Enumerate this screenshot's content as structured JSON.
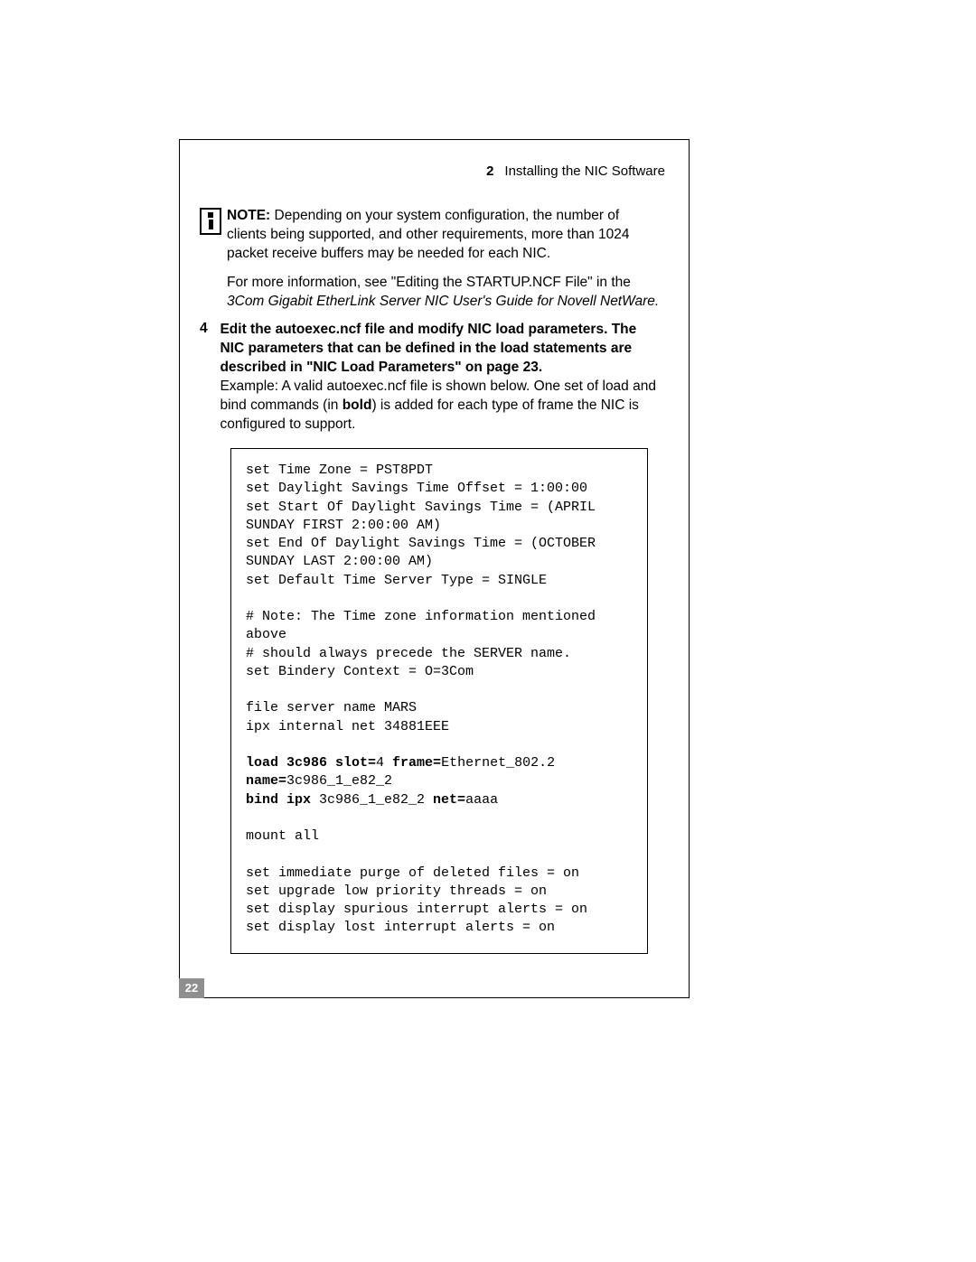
{
  "header": {
    "chapter_num": "2",
    "chapter_title": "Installing the NIC Software"
  },
  "note": {
    "label": "NOTE:",
    "text": " Depending on your system configuration, the number of clients being supported, and other requirements, more than 1024 packet receive buffers may be needed for each NIC."
  },
  "more_info": {
    "lead": "For more information, see \"Editing the STARTUP.NCF File\" in the ",
    "ital": "3Com Gigabit EtherLink Server NIC User's Guide for Novell NetWare."
  },
  "step4": {
    "num": "4",
    "bold_line": "Edit the autoexec.ncf file and modify NIC load parameters. The NIC parameters that can be defined in the load statements are described in \"NIC Load Parameters\" on page 23.",
    "plain_a": "Example: A valid autoexec.ncf file is shown below. One set of load and bind commands (in ",
    "plain_bold": "bold",
    "plain_b": ") is added for each type of frame the NIC is configured to support."
  },
  "code": {
    "l1": "set Time Zone = PST8PDT",
    "l2": "set Daylight Savings Time Offset = 1:00:00",
    "l3": "set Start Of Daylight Savings Time = (APRIL SUNDAY FIRST 2:00:00 AM)",
    "l4": "set End Of Daylight Savings Time = (OCTOBER SUNDAY LAST 2:00:00 AM)",
    "l5": "set Default Time Server Type = SINGLE",
    "l6": "",
    "l7": "# Note: The Time zone information mentioned above",
    "l8": "# should always precede the SERVER name.",
    "l9": "set Bindery Context = O=3Com",
    "l10": "",
    "l11": "file server name MARS",
    "l12": "ipx internal net 34881EEE",
    "l13": "",
    "b1a": "load 3c986 slot=",
    "b1b": "4",
    "b1c": " frame=",
    "b1d": "Ethernet_802.2",
    "b2a": "name=",
    "b2b": "3c986_1_e82_2",
    "b3a": "bind ipx ",
    "b3b": "3c986_1_e82_2",
    "b3c": " net=",
    "b3d": "aaaa",
    "l14": "",
    "l15": "mount all",
    "l16": "",
    "l17": "set immediate purge of deleted files = on",
    "l18": "set upgrade low priority threads = on",
    "l19": "set display spurious interrupt alerts = on",
    "l20": "set display lost interrupt alerts = on"
  },
  "page_number": "22"
}
